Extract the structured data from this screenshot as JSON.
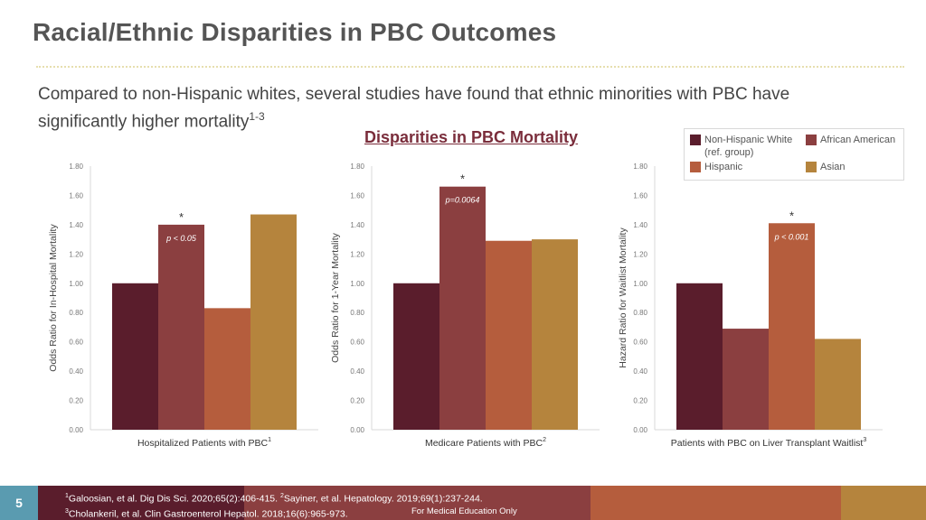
{
  "slide": {
    "title": "Racial/Ethnic Disparities in PBC Outcomes",
    "intro_text": "Compared to non-Hispanic whites, several studies have found that ethnic minorities with PBC have significantly higher mortality",
    "intro_superscript": "1-3",
    "number": "5"
  },
  "legend": {
    "items": [
      {
        "label": "Non-Hispanic White",
        "label2": "(ref. group)",
        "color": "#5a1d2c"
      },
      {
        "label": "African American",
        "color": "#8b3f40"
      },
      {
        "label": "Hispanic",
        "color": "#b55d3d"
      },
      {
        "label": "Asian",
        "color": "#b5843d"
      }
    ]
  },
  "chart_data": [
    {
      "type": "bar",
      "title": "Disparities in PBC Mortality",
      "series_names": [
        "Non-Hispanic White",
        "African American",
        "Hispanic",
        "Asian"
      ],
      "values": [
        1.0,
        1.4,
        0.83,
        1.47
      ],
      "ylabel": "Odds Ratio for In-Hospital Mortality",
      "xlabel": "Hospitalized Patients with PBC",
      "xlabel_sup": "1",
      "ylim": [
        0,
        1.8
      ],
      "yticks": [
        "0.00",
        "0.20",
        "0.40",
        "0.60",
        "0.80",
        "1.00",
        "1.20",
        "1.40",
        "1.60",
        "1.80"
      ],
      "annotation": {
        "bar": 1,
        "star": "*",
        "text": "p < 0.05"
      }
    },
    {
      "type": "bar",
      "series_names": [
        "Non-Hispanic White",
        "African American",
        "Hispanic",
        "Asian"
      ],
      "values": [
        1.0,
        1.66,
        1.29,
        1.3
      ],
      "ylabel": "Odds Ratio for 1-Year Mortality",
      "xlabel": "Medicare Patients with PBC",
      "xlabel_sup": "2",
      "ylim": [
        0,
        1.8
      ],
      "yticks": [
        "0.00",
        "0.20",
        "0.40",
        "0.60",
        "0.80",
        "1.00",
        "1.20",
        "1.40",
        "1.60",
        "1.80"
      ],
      "annotation": {
        "bar": 1,
        "star": "*",
        "text": "p=0.0064"
      }
    },
    {
      "type": "bar",
      "series_names": [
        "Non-Hispanic White",
        "African American",
        "Hispanic",
        "Asian"
      ],
      "values": [
        1.0,
        0.69,
        1.41,
        0.62
      ],
      "ylabel": "Hazard Ratio for Waitlist Mortality",
      "xlabel": "Patients with PBC on Liver Transplant Waitlist",
      "xlabel_sup": "3",
      "ylim": [
        0,
        1.8
      ],
      "yticks": [
        "0.00",
        "0.20",
        "0.40",
        "0.60",
        "0.80",
        "1.00",
        "1.20",
        "1.40",
        "1.60",
        "1.80"
      ],
      "annotation": {
        "bar": 2,
        "star": "*",
        "text": "p < 0.001"
      }
    }
  ],
  "colors": {
    "bars": [
      "#5a1d2c",
      "#8b3f40",
      "#b55d3d",
      "#b5843d"
    ],
    "footer": [
      "#5a9bb0",
      "#5a1d2c",
      "#8b3f40",
      "#b55d3d",
      "#b5843d"
    ]
  },
  "footer": {
    "ref1_sup": "1",
    "ref1": "Galoosian, et  al. Dig Dis Sci. 2020;65(2):406-415. ",
    "ref2_sup": "2",
    "ref2": "Sayiner, et al. Hepatology. 2019;69(1):237-244.",
    "ref3_sup": "3",
    "ref3": "Cholankeril, et al. Clin Gastroenterol Hepatol. 2018;16(6):965-973.",
    "disclaimer": "For Medical Education Only"
  }
}
